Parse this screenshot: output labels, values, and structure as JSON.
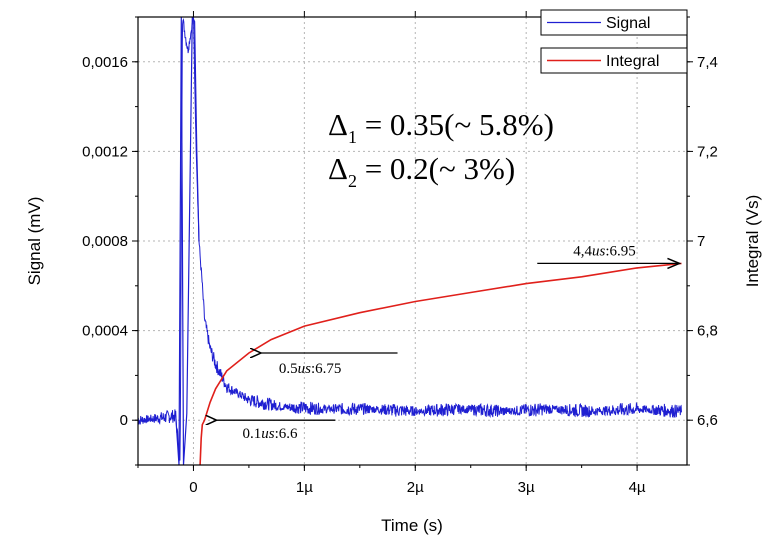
{
  "chart_data": {
    "type": "line",
    "xlabel": "Time (s)",
    "ylabel": "Signal (mV)",
    "y2label": "Integral (Vs)",
    "xlim": [
      -5e-07,
      4.45e-06
    ],
    "ylim": [
      -0.0002,
      0.0018
    ],
    "y2lim": [
      6.5,
      7.5
    ],
    "grid": true,
    "legend_position": "top-right",
    "x_ticks": [
      {
        "value": 0,
        "label": "0"
      },
      {
        "value": 1e-06,
        "label": "1µ"
      },
      {
        "value": 2e-06,
        "label": "2µ"
      },
      {
        "value": 3e-06,
        "label": "3µ"
      },
      {
        "value": 4e-06,
        "label": "4µ"
      }
    ],
    "y_ticks": [
      {
        "value": 0,
        "label": "0"
      },
      {
        "value": 0.0004,
        "label": "0,0004"
      },
      {
        "value": 0.0008,
        "label": "0,0008"
      },
      {
        "value": 0.0012,
        "label": "0,0012"
      },
      {
        "value": 0.0016,
        "label": "0,0016"
      }
    ],
    "y2_ticks": [
      {
        "value": 6.6,
        "label": "6,6"
      },
      {
        "value": 6.8,
        "label": "6,8"
      },
      {
        "value": 7.0,
        "label": "7"
      },
      {
        "value": 7.2,
        "label": "7,2"
      },
      {
        "value": 7.4,
        "label": "7,4"
      }
    ],
    "series": [
      {
        "name": "Signal",
        "axis": "left",
        "color": "#1f1fd1",
        "x": [
          -5e-07,
          -3e-07,
          -1.6e-07,
          -1.2e-07,
          -1e-07,
          -5e-08,
          0,
          2e-08,
          5e-08,
          8e-08,
          1e-07,
          1.5e-07,
          2e-07,
          3e-07,
          5e-07,
          8e-07,
          1.2e-06,
          1.6e-06,
          2e-06,
          2.4e-06,
          2.8e-06,
          3.2e-06,
          3.6e-06,
          4e-06,
          4.4e-06
        ],
        "y": [
          0.0,
          1e-05,
          2e-05,
          -0.0002,
          0.0018,
          0.00165,
          0.0018,
          0.0013,
          0.0008,
          0.0006,
          0.00045,
          0.00032,
          0.00025,
          0.00015,
          9e-05,
          6e-05,
          5e-05,
          5e-05,
          4e-05,
          5e-05,
          4e-05,
          5e-05,
          4e-05,
          5e-05,
          4e-05
        ],
        "noise_amplitude": 3e-05
      },
      {
        "name": "Integral",
        "axis": "right",
        "color": "#e0201b",
        "x": [
          6e-08,
          7e-08,
          8e-08,
          1e-07,
          1.5e-07,
          2e-07,
          3e-07,
          5e-07,
          7e-07,
          1e-06,
          1.5e-06,
          2e-06,
          2.5e-06,
          3e-06,
          3.5e-06,
          4e-06,
          4.4e-06
        ],
        "y": [
          6.5,
          6.56,
          6.59,
          6.6,
          6.64,
          6.67,
          6.71,
          6.75,
          6.78,
          6.81,
          6.84,
          6.865,
          6.885,
          6.905,
          6.92,
          6.94,
          6.95
        ]
      }
    ],
    "annotations": [
      {
        "number": "0.1",
        "unit": "us",
        "value": "6.6",
        "target_x": 1e-07,
        "target_y2": 6.6,
        "arrow_from_x": 1.28e-06
      },
      {
        "number": "0.5",
        "unit": "us",
        "value": "6.75",
        "target_x": 5e-07,
        "target_y2": 6.75,
        "arrow_from_x": 1.84e-06
      },
      {
        "number": "4,4",
        "unit": "us",
        "value": "6.95",
        "target_x": 4.4e-06,
        "target_y2": 6.95,
        "arrow_from_x": 3.1e-06
      }
    ],
    "formulas": [
      {
        "symbol": "Δ",
        "sub": "1",
        "text": " = 0.35(~ 5.8%)"
      },
      {
        "symbol": "Δ",
        "sub": "2",
        "text": " = 0.2(~ 3%)"
      }
    ]
  }
}
